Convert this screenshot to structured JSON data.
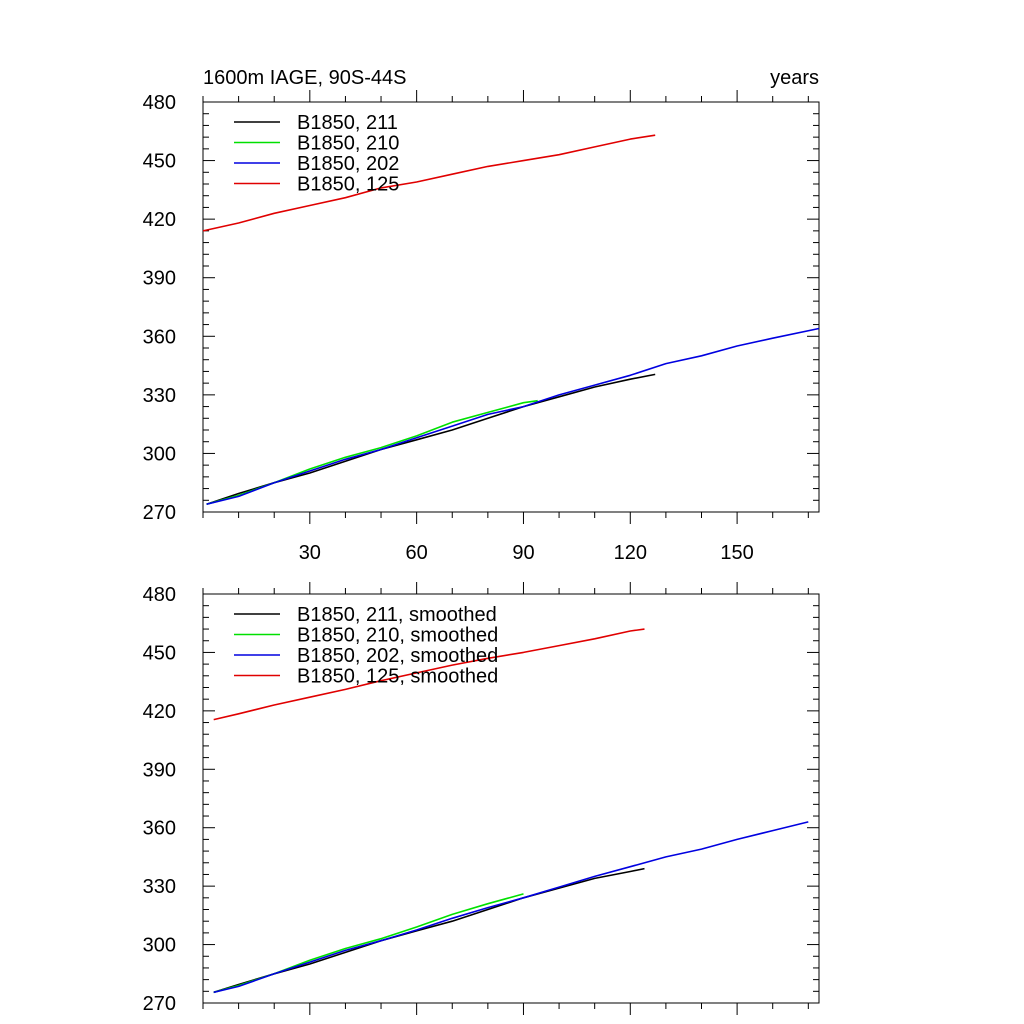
{
  "chart_data": [
    {
      "type": "line",
      "title_left": "1600m IAGE, 90S-44S",
      "title_right": "years",
      "xlabel": "",
      "ylabel": "",
      "xlim": [
        0,
        173
      ],
      "ylim": [
        270,
        480
      ],
      "xticks": [
        30,
        60,
        90,
        120,
        150
      ],
      "xtick_labels": [
        "30",
        "60",
        "90",
        "120",
        "150"
      ],
      "yticks": [
        270,
        300,
        330,
        360,
        390,
        420,
        450,
        480
      ],
      "ytick_labels": [
        "270",
        "300",
        "330",
        "360",
        "390",
        "420",
        "450",
        "480"
      ],
      "legend_position": "top-left",
      "grid": false,
      "series": [
        {
          "name": "B1850, 211",
          "color": "#000000",
          "x": [
            1,
            10,
            20,
            30,
            40,
            50,
            60,
            70,
            80,
            90,
            100,
            110,
            120,
            127
          ],
          "y": [
            274,
            279.5,
            285,
            290,
            296,
            302,
            307,
            312,
            318,
            324,
            329,
            334,
            338,
            340.5
          ]
        },
        {
          "name": "B1850, 210",
          "color": "#00e000",
          "x": [
            1,
            10,
            20,
            30,
            40,
            50,
            60,
            70,
            80,
            90,
            94
          ],
          "y": [
            274,
            278.5,
            285,
            292,
            298,
            303,
            309,
            316,
            321,
            326,
            327
          ]
        },
        {
          "name": "B1850, 202",
          "color": "#0000e0",
          "x": [
            1,
            10,
            20,
            30,
            40,
            50,
            60,
            70,
            80,
            90,
            100,
            110,
            120,
            130,
            140,
            150,
            160,
            173
          ],
          "y": [
            274,
            278,
            285,
            291,
            297,
            302,
            308,
            314,
            320,
            324,
            330,
            335,
            340,
            346,
            350,
            355,
            359,
            364
          ]
        },
        {
          "name": "B1850, 125",
          "color": "#e00000",
          "x": [
            0,
            10,
            20,
            30,
            40,
            50,
            60,
            70,
            80,
            90,
            100,
            110,
            120,
            127
          ],
          "y": [
            414,
            418,
            423,
            427,
            431,
            436,
            439,
            443,
            447,
            450,
            453,
            457,
            461,
            463
          ]
        }
      ]
    },
    {
      "type": "line",
      "title_left": "",
      "title_right": "",
      "xlabel": "",
      "ylabel": "",
      "xlim": [
        0,
        173
      ],
      "ylim": [
        270,
        480
      ],
      "xticks": [
        30,
        60,
        90,
        120,
        150
      ],
      "xtick_labels": [],
      "yticks": [
        270,
        300,
        330,
        360,
        390,
        420,
        450,
        480
      ],
      "ytick_labels": [
        "270",
        "300",
        "330",
        "360",
        "390",
        "420",
        "450",
        "480"
      ],
      "legend_position": "top-left",
      "grid": false,
      "series": [
        {
          "name": "B1850, 211, smoothed",
          "color": "#000000",
          "x": [
            3,
            10,
            20,
            30,
            40,
            50,
            60,
            70,
            80,
            90,
            100,
            110,
            120,
            124
          ],
          "y": [
            275.5,
            279.5,
            285,
            290,
            296,
            302,
            307,
            312,
            318,
            324,
            329,
            334,
            337.5,
            339
          ]
        },
        {
          "name": "B1850, 210, smoothed",
          "color": "#00e000",
          "x": [
            3,
            10,
            20,
            30,
            40,
            50,
            60,
            70,
            80,
            90
          ],
          "y": [
            275.5,
            279,
            285,
            292,
            298,
            303,
            309,
            315.5,
            321,
            326
          ]
        },
        {
          "name": "B1850, 202, smoothed",
          "color": "#0000e0",
          "x": [
            3,
            10,
            20,
            30,
            40,
            50,
            60,
            70,
            80,
            90,
            100,
            110,
            120,
            130,
            140,
            150,
            160,
            170
          ],
          "y": [
            275.5,
            278.5,
            285,
            291,
            297,
            302,
            307.5,
            313.5,
            319,
            324,
            329.5,
            335,
            340,
            345,
            349,
            354,
            358.5,
            363
          ]
        },
        {
          "name": "B1850, 125, smoothed",
          "color": "#e00000",
          "x": [
            3,
            10,
            20,
            30,
            40,
            50,
            60,
            70,
            80,
            90,
            100,
            110,
            120,
            124
          ],
          "y": [
            415.5,
            418.5,
            423,
            427,
            431,
            435.5,
            439.5,
            443.5,
            447,
            450,
            453.5,
            457,
            461,
            462
          ]
        }
      ]
    }
  ]
}
